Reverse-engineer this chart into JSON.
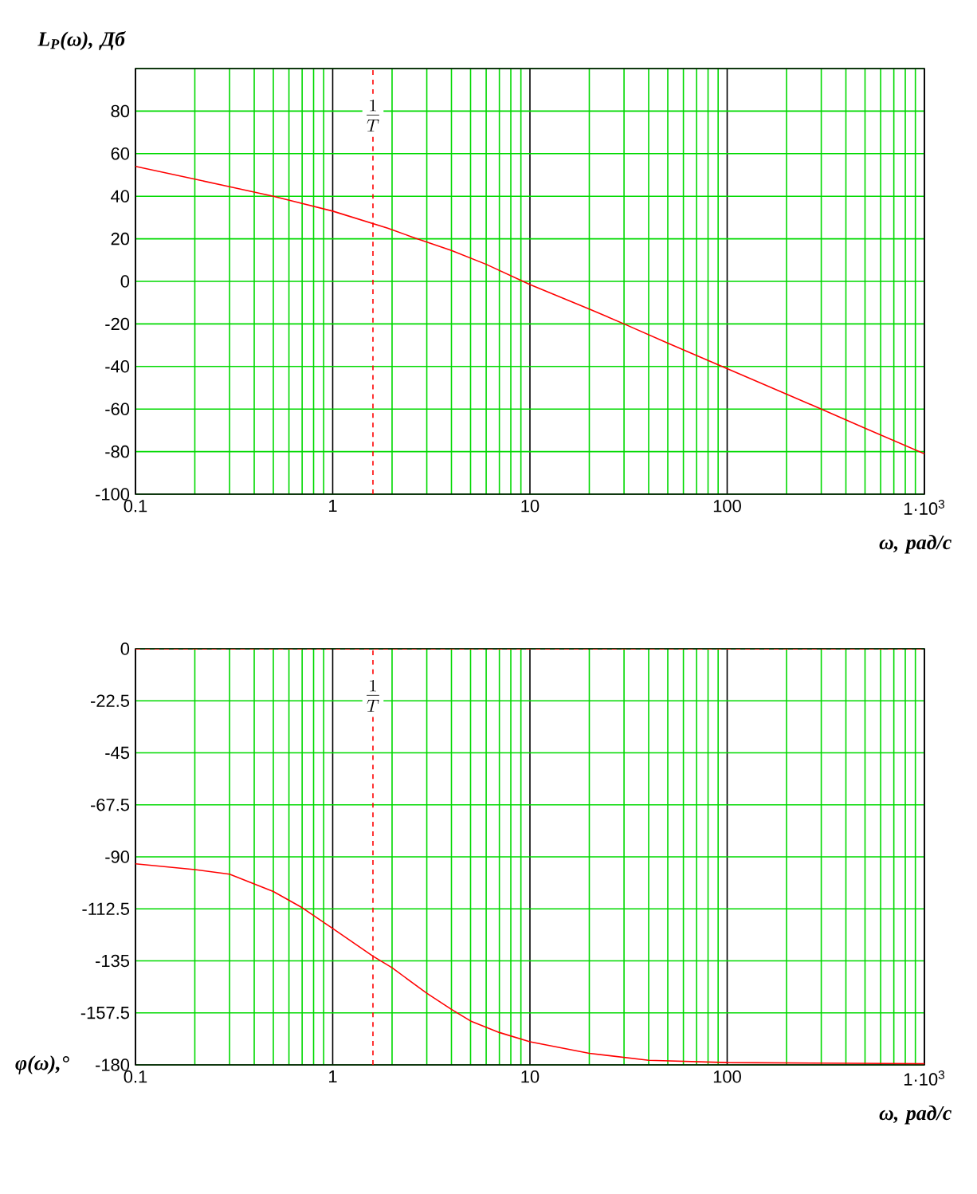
{
  "chart_data": [
    {
      "type": "line",
      "ylabel": "L$_{P}$(ω), Дб",
      "xlabel": "ω, рад/с",
      "log": "x",
      "grid": true,
      "xlim": [
        0.1,
        1000
      ],
      "ylim": [
        -100,
        100
      ],
      "xticks": [
        0.1,
        1,
        10,
        100,
        {
          "value": 1000,
          "label": "1·10$^{3}$"
        }
      ],
      "yticks": [
        -100,
        -80,
        -60,
        -40,
        -20,
        0,
        20,
        40,
        60,
        80,
        {
          "value": 100,
          "label": null
        }
      ],
      "series": [
        {
          "color": "#ff0000",
          "x": [
            0.1,
            0.2,
            0.3,
            0.5,
            1,
            1.9,
            2.5,
            4,
            6,
            10,
            20,
            30,
            50,
            100,
            200,
            300,
            500,
            1000
          ],
          "values": [
            54,
            48,
            44.5,
            40,
            33,
            25,
            21,
            14.5,
            8,
            -1.5,
            -13,
            -20,
            -29,
            -41,
            -53,
            -60,
            -69,
            -81
          ]
        }
      ],
      "ref_lines": [
        {
          "axis": "x",
          "value": 1.6,
          "label": "\\frac{1}{T}",
          "color": "#ff0000",
          "line_style": "dashed"
        }
      ]
    },
    {
      "type": "line",
      "ylabel": "φ(ω),°",
      "xlabel": "ω, рад/с",
      "log": "x",
      "grid": true,
      "xlim": [
        0.1,
        1000
      ],
      "ylim": [
        -180,
        0
      ],
      "xticks": [
        0.1,
        1,
        10,
        100,
        {
          "value": 1000,
          "label": "1·10$^{3}$"
        }
      ],
      "yticks": [
        -180,
        -157.5,
        -135,
        -112.5,
        -90,
        -67.5,
        -45,
        -22.5,
        0
      ],
      "series": [
        {
          "color": "#ff0000",
          "x": [
            0.1,
            0.2,
            0.3,
            0.5,
            0.7,
            1,
            1.6,
            2,
            3,
            4,
            5,
            7,
            10,
            20,
            40,
            100,
            1000
          ],
          "values": [
            -93,
            -95.5,
            -97.5,
            -105,
            -112,
            -121,
            -133,
            -138,
            -149,
            -156,
            -161,
            -166,
            -170,
            -175,
            -178,
            -179,
            -179.5
          ]
        }
      ],
      "ref_lines": [
        {
          "axis": "x",
          "value": 1.6,
          "label": "\\frac{1}{T}",
          "color": "#ff0000",
          "line_style": "dashed"
        },
        {
          "axis": "y",
          "value": 0,
          "label": null,
          "color": "#ff0000",
          "line_style": "dashed"
        }
      ]
    }
  ]
}
